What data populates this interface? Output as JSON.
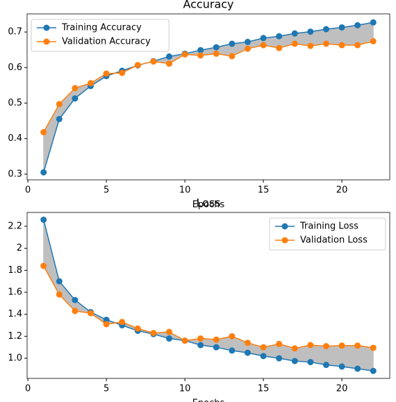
{
  "chart_data": [
    {
      "type": "line",
      "title": "Accuracy",
      "x_label": "Epochs",
      "x": [
        1,
        2,
        3,
        4,
        5,
        6,
        7,
        8,
        9,
        10,
        11,
        12,
        13,
        14,
        15,
        16,
        17,
        18,
        19,
        20,
        21,
        22
      ],
      "series": [
        {
          "name": "Training Accuracy",
          "color": "#1f77b4",
          "values": [
            0.305,
            0.455,
            0.513,
            0.548,
            0.576,
            0.591,
            0.606,
            0.618,
            0.631,
            0.639,
            0.649,
            0.657,
            0.667,
            0.672,
            0.683,
            0.688,
            0.696,
            0.701,
            0.708,
            0.713,
            0.719,
            0.727
          ]
        },
        {
          "name": "Validation Accuracy",
          "color": "#ff7f0e",
          "values": [
            0.418,
            0.497,
            0.542,
            0.556,
            0.583,
            0.585,
            0.607,
            0.617,
            0.611,
            0.637,
            0.634,
            0.639,
            0.632,
            0.653,
            0.663,
            0.655,
            0.667,
            0.661,
            0.667,
            0.663,
            0.663,
            0.674
          ]
        }
      ],
      "fill_between": true,
      "fill_color": "#bfbfbf",
      "xlim": [
        -0.05,
        23.05
      ],
      "xticks": [
        0,
        5,
        10,
        15,
        20
      ],
      "ylim": [
        0.284,
        0.751
      ],
      "yticks": [
        0.3,
        0.4,
        0.5,
        0.6,
        0.7
      ],
      "legend": "upper left"
    },
    {
      "type": "line",
      "title": "Loss",
      "x_label": "Epochs",
      "x": [
        1,
        2,
        3,
        4,
        5,
        6,
        7,
        8,
        9,
        10,
        11,
        12,
        13,
        14,
        15,
        16,
        17,
        18,
        19,
        20,
        21,
        22
      ],
      "series": [
        {
          "name": "Training Loss",
          "color": "#1f77b4",
          "values": [
            2.26,
            1.7,
            1.53,
            1.42,
            1.35,
            1.3,
            1.25,
            1.22,
            1.18,
            1.16,
            1.12,
            1.1,
            1.07,
            1.05,
            1.02,
            1.0,
            0.975,
            0.965,
            0.94,
            0.925,
            0.905,
            0.885
          ]
        },
        {
          "name": "Validation Loss",
          "color": "#ff7f0e",
          "values": [
            1.84,
            1.58,
            1.43,
            1.41,
            1.31,
            1.33,
            1.27,
            1.23,
            1.24,
            1.16,
            1.18,
            1.17,
            1.2,
            1.14,
            1.1,
            1.13,
            1.09,
            1.12,
            1.11,
            1.115,
            1.115,
            1.095
          ]
        }
      ],
      "fill_between": true,
      "fill_color": "#bfbfbf",
      "xlim": [
        -0.05,
        23.05
      ],
      "xticks": [
        0,
        5,
        10,
        15,
        20
      ],
      "ylim": [
        0.817,
        2.326
      ],
      "yticks": [
        {
          "value": 1.0,
          "label": "1.0"
        },
        1.2,
        1.4,
        1.6,
        1.8,
        2.0,
        2.2
      ],
      "legend": "upper right"
    }
  ]
}
